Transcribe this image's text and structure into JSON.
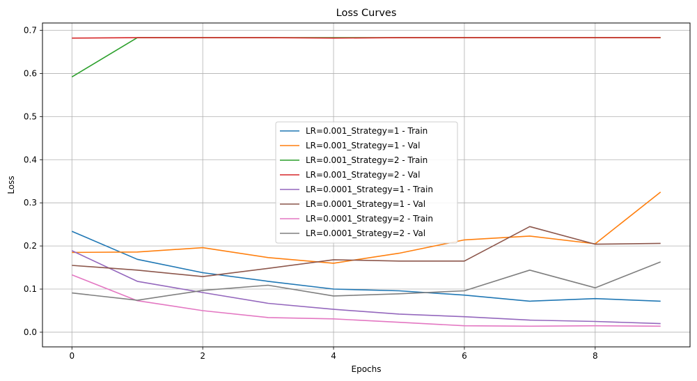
{
  "chart_data": {
    "type": "line",
    "title": "Loss Curves",
    "xlabel": "Epochs",
    "ylabel": "Loss",
    "xlim": [
      -0.45,
      9.45
    ],
    "ylim": [
      -0.034,
      0.717
    ],
    "x_ticks": [
      0,
      2,
      4,
      6,
      8
    ],
    "y_ticks": [
      0.0,
      0.1,
      0.2,
      0.3,
      0.4,
      0.5,
      0.6,
      0.7
    ],
    "grid": true,
    "legend_position": "center",
    "x": [
      0,
      1,
      2,
      3,
      4,
      5,
      6,
      7,
      8,
      9
    ],
    "series": [
      {
        "name": "LR=0.001_Strategy=1 - Train",
        "color": "#1f77b4",
        "values": [
          0.234,
          0.169,
          0.138,
          0.118,
          0.1,
          0.096,
          0.086,
          0.072,
          0.078,
          0.072
        ]
      },
      {
        "name": "LR=0.001_Strategy=1 - Val",
        "color": "#ff7f0e",
        "values": [
          0.185,
          0.186,
          0.196,
          0.173,
          0.16,
          0.183,
          0.214,
          0.223,
          0.205,
          0.325
        ]
      },
      {
        "name": "LR=0.001_Strategy=2 - Train",
        "color": "#2ca02c",
        "values": [
          0.592,
          0.683,
          0.683,
          0.683,
          0.683,
          0.683,
          0.683,
          0.683,
          0.683,
          0.683
        ]
      },
      {
        "name": "LR=0.001_Strategy=2 - Val",
        "color": "#d62728",
        "values": [
          0.682,
          0.683,
          0.683,
          0.683,
          0.682,
          0.683,
          0.683,
          0.683,
          0.683,
          0.683
        ]
      },
      {
        "name": "LR=0.0001_Strategy=1 - Train",
        "color": "#9467bd",
        "values": [
          0.189,
          0.118,
          0.092,
          0.067,
          0.053,
          0.042,
          0.036,
          0.028,
          0.025,
          0.02
        ]
      },
      {
        "name": "LR=0.0001_Strategy=1 - Val",
        "color": "#8c564b",
        "values": [
          0.155,
          0.144,
          0.129,
          0.148,
          0.168,
          0.165,
          0.165,
          0.245,
          0.204,
          0.206
        ]
      },
      {
        "name": "LR=0.0001_Strategy=2 - Train",
        "color": "#e377c2",
        "values": [
          0.133,
          0.073,
          0.05,
          0.034,
          0.031,
          0.023,
          0.015,
          0.014,
          0.015,
          0.014
        ]
      },
      {
        "name": "LR=0.0001_Strategy=2 - Val",
        "color": "#7f7f7f",
        "values": [
          0.091,
          0.074,
          0.097,
          0.109,
          0.084,
          0.089,
          0.096,
          0.144,
          0.103,
          0.163
        ]
      }
    ]
  }
}
